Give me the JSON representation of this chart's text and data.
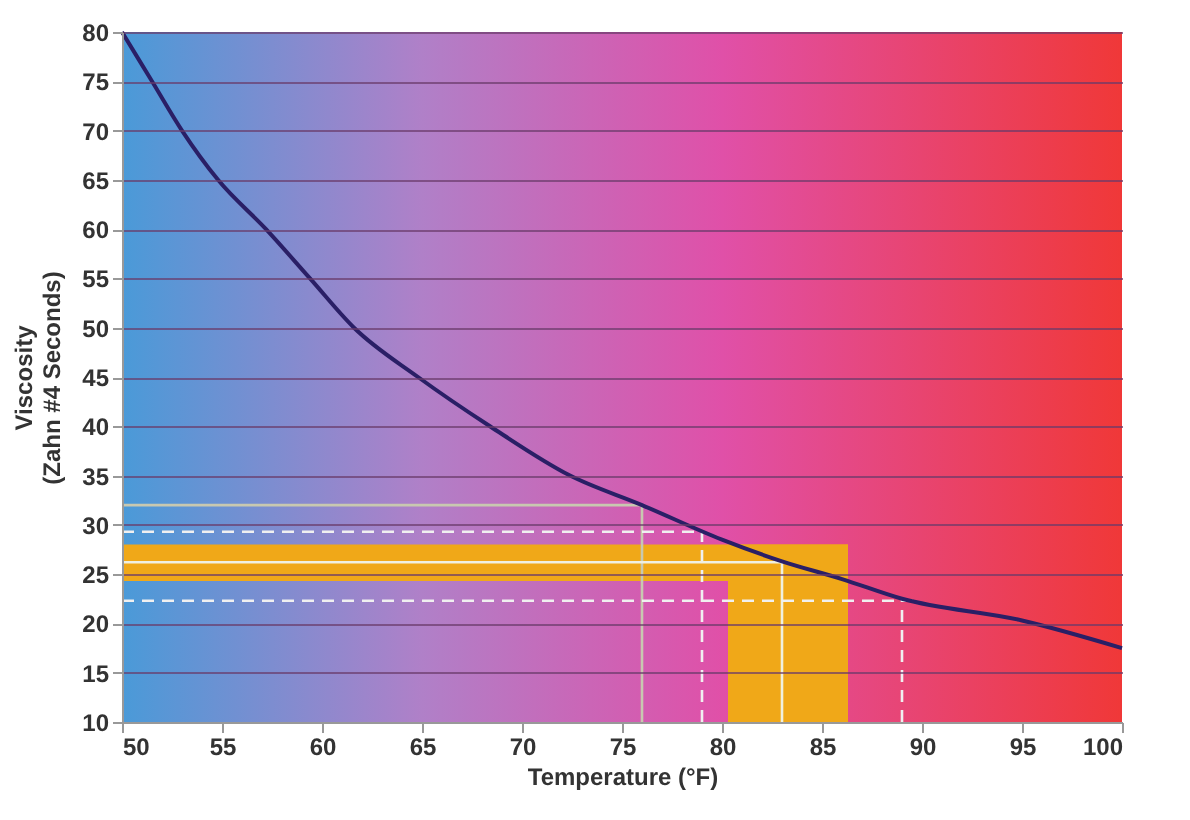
{
  "chart_data": {
    "type": "line",
    "xlabel": "Temperature (°F)",
    "ylabel": "Viscosity\n(Zahn #4 Seconds)",
    "x": [
      50,
      51.5,
      53,
      54.8,
      57.2,
      59.4,
      61.6,
      64.8,
      68.4,
      72.4,
      76,
      80,
      83,
      86,
      89,
      95,
      100
    ],
    "series": [
      {
        "color": "#2a1f66",
        "values": [
          80,
          75,
          70,
          65,
          60,
          55,
          50,
          45,
          40,
          35,
          32,
          28.5,
          26.3,
          24.5,
          22.5,
          20.3,
          17.5
        ]
      }
    ],
    "xlim": [
      50,
      100
    ],
    "xticks": [
      50,
      55,
      60,
      65,
      70,
      75,
      80,
      85,
      90,
      95,
      100
    ],
    "ylim": [
      10,
      80
    ],
    "yticks": [
      10,
      15,
      20,
      25,
      30,
      35,
      40,
      45,
      50,
      55,
      60,
      65,
      70,
      75,
      80
    ],
    "grid": "y",
    "marker": "none",
    "line_style": "solid",
    "bands": [
      {
        "axis": "y",
        "from": 24.3,
        "to": 28,
        "color": "#f0a818"
      },
      {
        "axis": "x",
        "from": 80.3,
        "to": 86.3,
        "color": "#f0a818"
      }
    ],
    "ref_lines": [
      {
        "axis": "y",
        "value": 32,
        "color": "#c8c8b0",
        "line_style": "solid"
      },
      {
        "axis": "x",
        "value": 76,
        "color": "#c8c8b0",
        "line_style": "solid"
      },
      {
        "axis": "y",
        "value": 29.3,
        "color": "#f0f0f0",
        "line_style": "dashed"
      },
      {
        "axis": "x",
        "value": 79,
        "color": "#f0f0f0",
        "line_style": "dashed"
      },
      {
        "axis": "y",
        "value": 26.2,
        "color": "#f0f0e0",
        "line_style": "solid"
      },
      {
        "axis": "x",
        "value": 83,
        "color": "#f0f0e0",
        "line_style": "solid"
      },
      {
        "axis": "y",
        "value": 22.3,
        "color": "#f0f0f0",
        "line_style": "dashed"
      },
      {
        "axis": "x",
        "value": 89,
        "color": "#f0f0f0",
        "line_style": "dashed"
      }
    ]
  }
}
